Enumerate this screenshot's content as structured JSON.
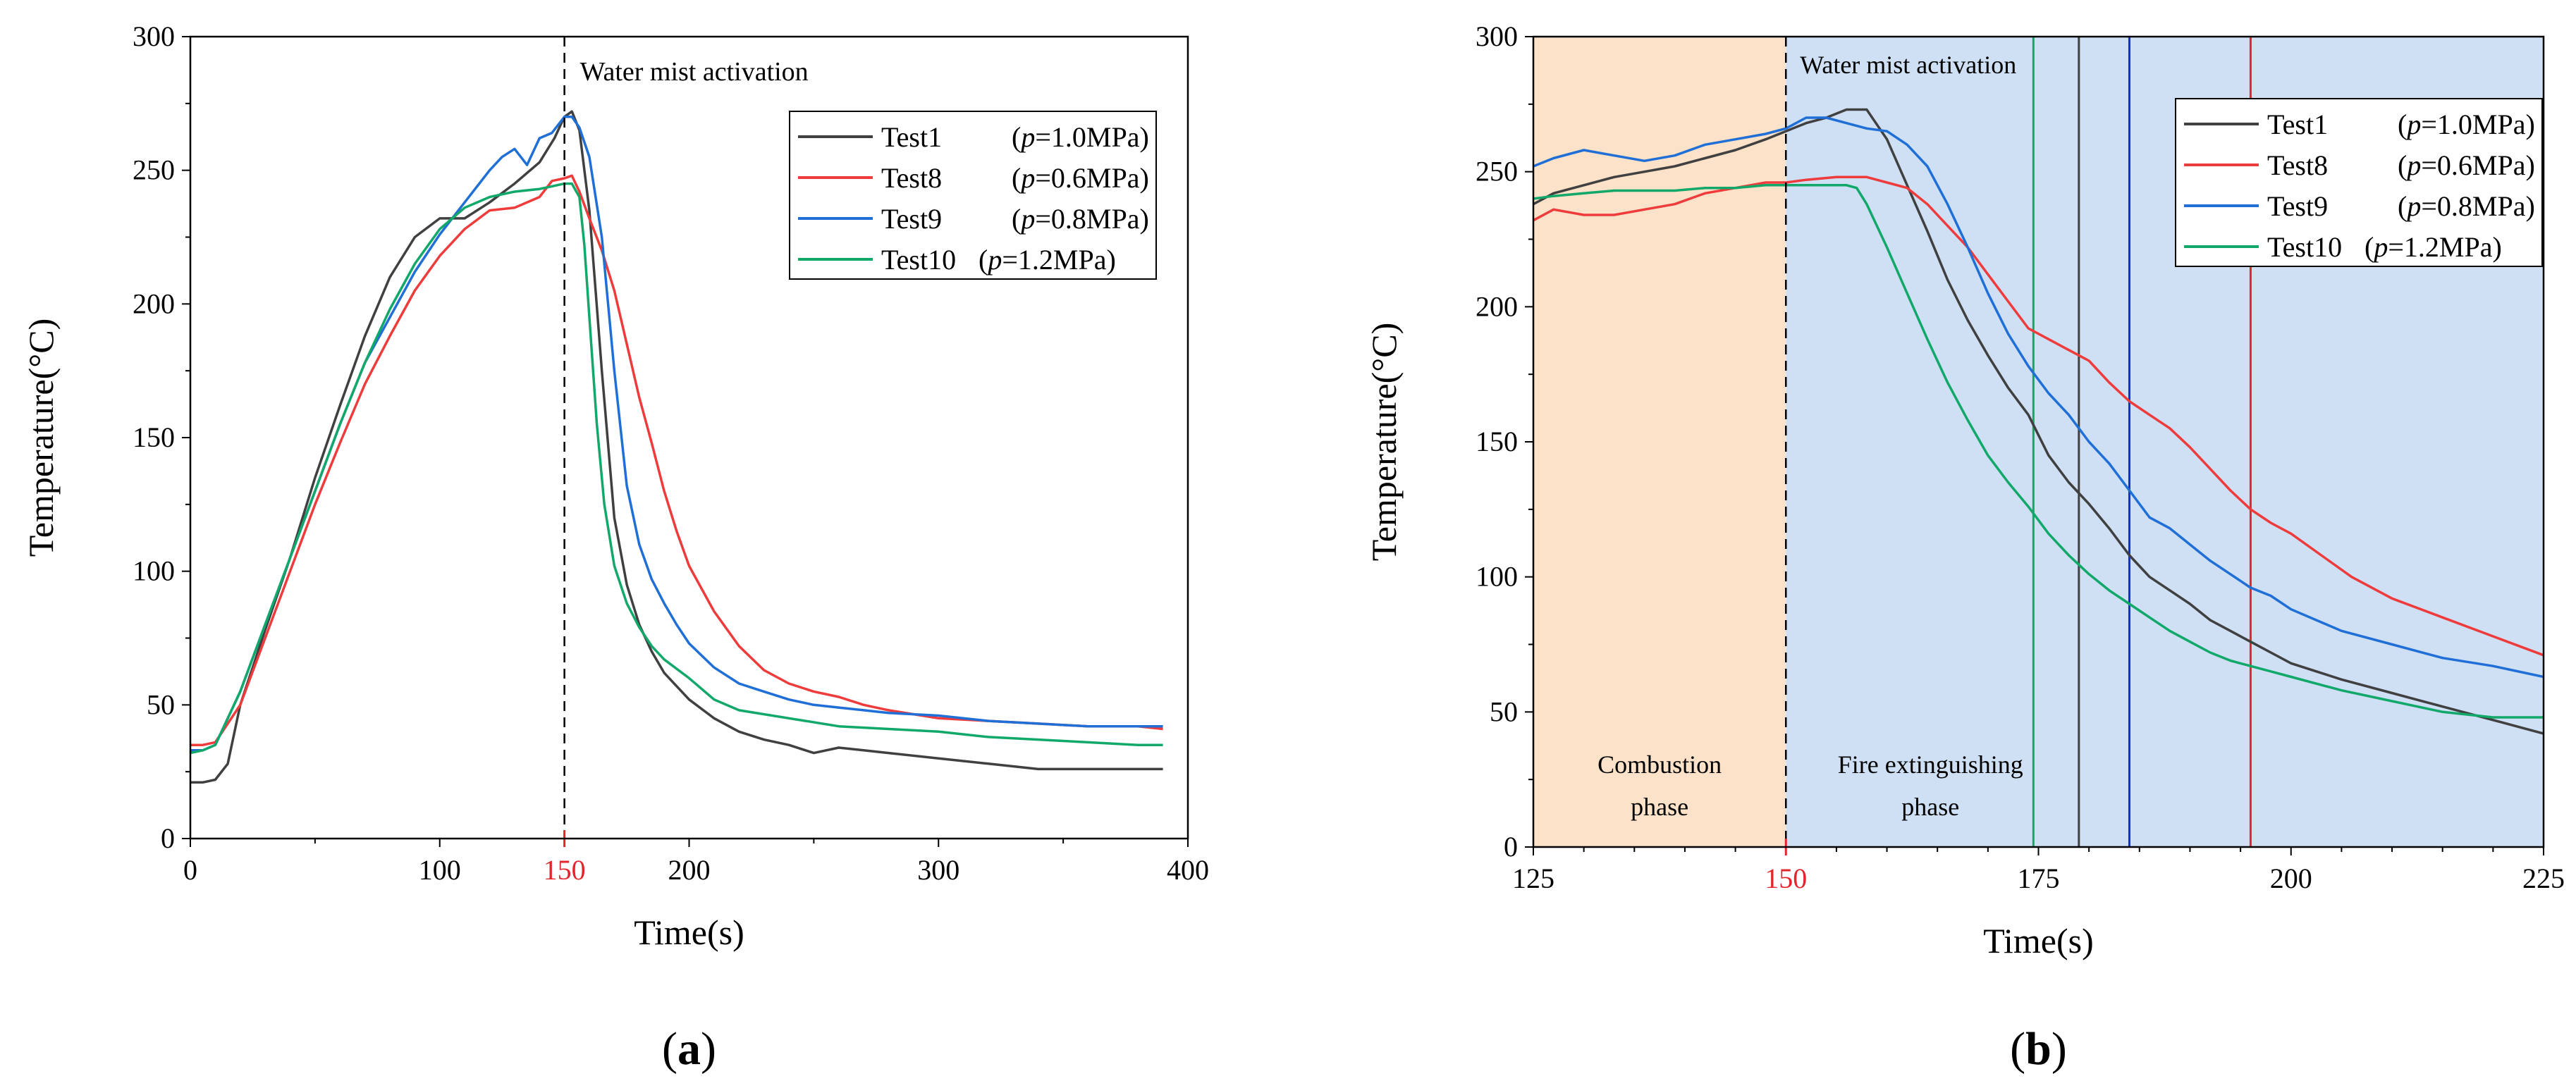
{
  "colors": {
    "test1": "#404040",
    "test8": "#ee3b3b",
    "test9": "#1f6fd6",
    "test10": "#12a86a",
    "marker": "#e3262c",
    "combustion_fill": "#fbe2c8",
    "extinguish_fill": "#cfe0f5",
    "line_test9_marker": "#1430c8"
  },
  "legend": {
    "entries": [
      {
        "name": "Test1",
        "pressure": "1.0MPa"
      },
      {
        "name": "Test8",
        "pressure": "0.6MPa"
      },
      {
        "name": "Test9",
        "pressure": "0.8MPa"
      },
      {
        "name": "Test10",
        "pressure": "1.2MPa"
      }
    ],
    "p_symbol": "p"
  },
  "chart_data": [
    {
      "type": "line",
      "panel_label": "(a)",
      "xlabel": "Time(s)",
      "ylabel": "Temperature(°C)",
      "xlim": [
        0,
        400
      ],
      "ylim": [
        0,
        300
      ],
      "xticks": [
        0,
        100,
        150,
        200,
        300,
        400
      ],
      "yticks": [
        0,
        50,
        100,
        150,
        200,
        250,
        300
      ],
      "highlight_tick": 150,
      "annotation": {
        "x": 150,
        "text": "Water mist activation"
      },
      "legend_position": "top-right",
      "series": [
        {
          "name": "Test1 (p=1.0MPa)",
          "key": "test1",
          "x": [
            0,
            5,
            10,
            15,
            20,
            30,
            40,
            50,
            60,
            70,
            80,
            90,
            100,
            110,
            120,
            130,
            140,
            146,
            150,
            153,
            156,
            160,
            165,
            170,
            175,
            180,
            185,
            190,
            195,
            200,
            210,
            220,
            230,
            240,
            250,
            260,
            270,
            280,
            300,
            320,
            340,
            360,
            380,
            390
          ],
          "y": [
            21,
            21,
            22,
            28,
            50,
            78,
            105,
            135,
            162,
            188,
            210,
            225,
            232,
            232,
            238,
            245,
            253,
            262,
            270,
            272,
            265,
            235,
            175,
            120,
            95,
            80,
            70,
            62,
            57,
            52,
            45,
            40,
            37,
            35,
            32,
            34,
            33,
            32,
            30,
            28,
            26,
            26,
            26,
            26
          ]
        },
        {
          "name": "Test8 (p=0.6MPa)",
          "key": "test8",
          "x": [
            0,
            5,
            10,
            20,
            30,
            40,
            50,
            60,
            70,
            80,
            90,
            100,
            110,
            120,
            130,
            140,
            145,
            150,
            153,
            156,
            160,
            165,
            170,
            175,
            180,
            185,
            190,
            195,
            200,
            210,
            220,
            230,
            240,
            250,
            260,
            270,
            280,
            300,
            320,
            340,
            360,
            380,
            390
          ],
          "y": [
            35,
            35,
            36,
            50,
            75,
            100,
            125,
            148,
            170,
            188,
            205,
            218,
            228,
            235,
            236,
            240,
            246,
            247,
            248,
            242,
            232,
            220,
            205,
            185,
            165,
            148,
            130,
            115,
            102,
            85,
            72,
            63,
            58,
            55,
            53,
            50,
            48,
            45,
            44,
            43,
            42,
            42,
            41
          ]
        },
        {
          "name": "Test9 (p=0.8MPa)",
          "key": "test9",
          "x": [
            0,
            5,
            10,
            20,
            30,
            40,
            50,
            60,
            70,
            80,
            90,
            100,
            110,
            120,
            125,
            130,
            135,
            140,
            145,
            150,
            153,
            156,
            160,
            165,
            170,
            175,
            180,
            185,
            190,
            195,
            200,
            210,
            220,
            230,
            240,
            250,
            260,
            270,
            280,
            300,
            320,
            340,
            360,
            380,
            390
          ],
          "y": [
            33,
            33,
            35,
            55,
            80,
            105,
            130,
            155,
            178,
            195,
            212,
            226,
            238,
            250,
            255,
            258,
            252,
            262,
            264,
            270,
            270,
            266,
            255,
            225,
            175,
            132,
            110,
            97,
            88,
            80,
            73,
            64,
            58,
            55,
            52,
            50,
            49,
            48,
            47,
            46,
            44,
            43,
            42,
            42,
            42
          ]
        },
        {
          "name": "Test10 (p=1.2MPa)",
          "key": "test10",
          "x": [
            0,
            5,
            10,
            20,
            30,
            40,
            50,
            60,
            70,
            80,
            90,
            100,
            110,
            120,
            130,
            140,
            145,
            150,
            153,
            156,
            158,
            160,
            163,
            166,
            170,
            175,
            180,
            185,
            190,
            200,
            210,
            220,
            240,
            260,
            280,
            300,
            320,
            340,
            360,
            380,
            390
          ],
          "y": [
            32,
            33,
            35,
            55,
            80,
            105,
            130,
            155,
            178,
            198,
            215,
            228,
            236,
            240,
            242,
            243,
            244,
            245,
            245,
            240,
            222,
            195,
            155,
            125,
            102,
            88,
            79,
            72,
            67,
            60,
            52,
            48,
            45,
            42,
            41,
            40,
            38,
            37,
            36,
            35,
            35
          ]
        }
      ]
    },
    {
      "type": "line",
      "panel_label": "(b)",
      "xlabel": "Time(s)",
      "ylabel": "Temperature(°C)",
      "xlim": [
        125,
        225
      ],
      "ylim": [
        0,
        300
      ],
      "xticks": [
        125,
        150,
        175,
        200,
        225
      ],
      "yticks": [
        0,
        50,
        100,
        150,
        200,
        250,
        300
      ],
      "highlight_tick": 150,
      "annotation": {
        "x": 150,
        "text": "Water mist activation"
      },
      "regions": [
        {
          "from": 125,
          "to": 150,
          "label_lines": [
            "Combustion",
            "phase"
          ],
          "key": "combustion_fill"
        },
        {
          "from": 150,
          "to": 225,
          "label_lines": [
            "Fire extinguishing",
            "phase"
          ],
          "key": "extinguish_fill"
        }
      ],
      "vlines": [
        {
          "x": 174.5,
          "key": "test10"
        },
        {
          "x": 179,
          "key": "test1"
        },
        {
          "x": 184,
          "key": "line_test9_marker"
        },
        {
          "x": 196,
          "key": "marker"
        }
      ],
      "legend_position": "top-right",
      "series": [
        {
          "name": "Test1 (p=1.0MPa)",
          "key": "test1",
          "x": [
            125,
            127,
            130,
            133,
            136,
            139,
            142,
            145,
            148,
            150,
            152,
            154,
            156,
            158,
            160,
            162,
            164,
            166,
            168,
            170,
            172,
            174,
            176,
            178,
            180,
            182,
            184,
            186,
            188,
            190,
            192,
            194,
            196,
            198,
            200,
            205,
            210,
            215,
            220,
            225
          ],
          "y": [
            238,
            242,
            245,
            248,
            250,
            252,
            255,
            258,
            262,
            265,
            268,
            270,
            273,
            273,
            262,
            245,
            228,
            210,
            195,
            182,
            170,
            160,
            145,
            135,
            127,
            118,
            108,
            100,
            95,
            90,
            84,
            80,
            76,
            72,
            68,
            62,
            57,
            52,
            47,
            42
          ]
        },
        {
          "name": "Test8 (p=0.6MPa)",
          "key": "test8",
          "x": [
            125,
            127,
            130,
            133,
            136,
            139,
            142,
            145,
            148,
            150,
            152,
            155,
            158,
            160,
            162,
            164,
            166,
            168,
            170,
            172,
            174,
            176,
            178,
            180,
            182,
            184,
            186,
            188,
            190,
            192,
            194,
            196,
            198,
            200,
            203,
            206,
            210,
            215,
            220,
            225
          ],
          "y": [
            232,
            236,
            234,
            234,
            236,
            238,
            242,
            244,
            246,
            246,
            247,
            248,
            248,
            246,
            244,
            238,
            230,
            222,
            212,
            202,
            192,
            188,
            184,
            180,
            172,
            165,
            160,
            155,
            148,
            140,
            132,
            125,
            120,
            116,
            108,
            100,
            92,
            85,
            78,
            71
          ]
        },
        {
          "name": "Test9 (p=0.8MPa)",
          "key": "test9",
          "x": [
            125,
            127,
            130,
            133,
            136,
            139,
            142,
            145,
            148,
            150,
            152,
            154,
            156,
            158,
            160,
            162,
            164,
            166,
            168,
            170,
            172,
            174,
            176,
            178,
            180,
            182,
            184,
            186,
            188,
            190,
            192,
            194,
            196,
            198,
            200,
            205,
            210,
            215,
            220,
            225
          ],
          "y": [
            252,
            255,
            258,
            256,
            254,
            256,
            260,
            262,
            264,
            266,
            270,
            270,
            268,
            266,
            265,
            260,
            252,
            238,
            222,
            205,
            190,
            178,
            168,
            160,
            150,
            142,
            132,
            122,
            118,
            112,
            106,
            101,
            96,
            93,
            88,
            80,
            75,
            70,
            67,
            63
          ]
        },
        {
          "name": "Test10 (p=1.2MPa)",
          "key": "test10",
          "x": [
            125,
            127,
            130,
            133,
            136,
            139,
            142,
            145,
            148,
            150,
            152,
            154,
            156,
            157,
            158,
            160,
            162,
            164,
            166,
            168,
            170,
            172,
            174,
            176,
            178,
            180,
            182,
            184,
            186,
            188,
            190,
            192,
            194,
            196,
            198,
            200,
            205,
            210,
            215,
            220,
            225
          ],
          "y": [
            240,
            241,
            242,
            243,
            243,
            243,
            244,
            244,
            245,
            245,
            245,
            245,
            245,
            244,
            238,
            222,
            205,
            188,
            172,
            158,
            145,
            135,
            126,
            116,
            108,
            101,
            95,
            90,
            85,
            80,
            76,
            72,
            69,
            67,
            65,
            63,
            58,
            54,
            50,
            48,
            48
          ]
        }
      ]
    }
  ]
}
